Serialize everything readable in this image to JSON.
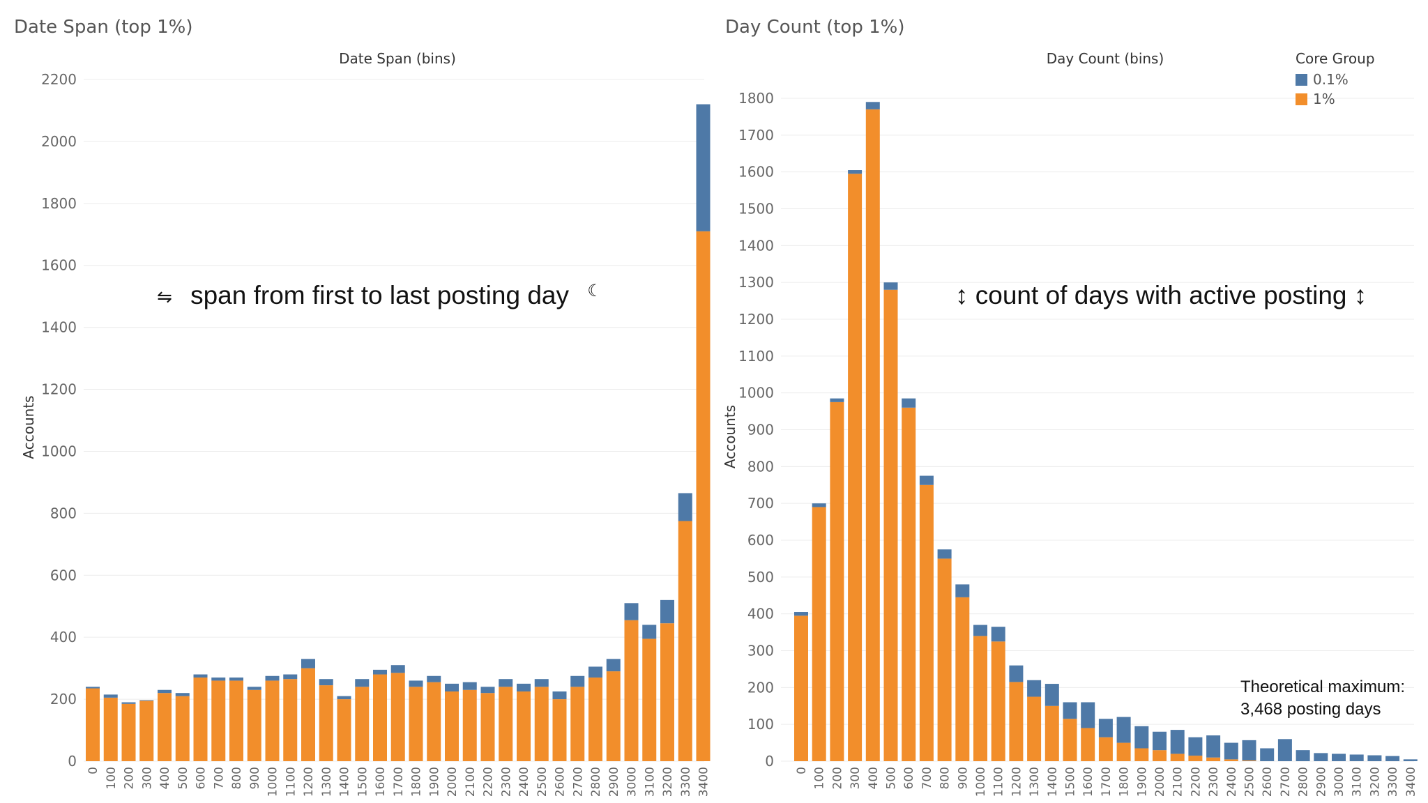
{
  "panels": {
    "left": {
      "panel_title": "Date Span (top 1%)",
      "annotation": "span from first to last posting day",
      "annotation_icon_left": "left-right-arrow-icon",
      "annotation_icon_right": "left-right-arrow-icon"
    },
    "right": {
      "panel_title": "Day Count (top 1%)",
      "annotation": "count of days with active posting",
      "annotation_icon_left": "up-down-arrow-icon",
      "annotation_icon_right": "up-down-arrow-icon",
      "note_line1": "Theoretical maximum:",
      "note_line2": "3,468 posting days"
    }
  },
  "legend": {
    "title": "Core Group",
    "items": [
      {
        "label": "0.1%",
        "color": "#4e79a7"
      },
      {
        "label": "1%",
        "color": "#f28e2b"
      }
    ]
  },
  "colors": {
    "series_0_1": "#4e79a7",
    "series_1": "#f28e2b",
    "grid": "#ececec",
    "axis_text": "#666666"
  },
  "chart_data": [
    {
      "type": "bar",
      "stacked": true,
      "title": "Date Span (bins)",
      "xlabel": "",
      "ylabel": "Accounts",
      "ylim": [
        0,
        2200
      ],
      "yticks": [
        0,
        200,
        400,
        600,
        800,
        1000,
        1200,
        1400,
        1600,
        1800,
        2000,
        2200
      ],
      "categories": [
        "0",
        "100",
        "200",
        "300",
        "400",
        "500",
        "600",
        "700",
        "800",
        "900",
        "1000",
        "1100",
        "1200",
        "1300",
        "1400",
        "1500",
        "1600",
        "1700",
        "1800",
        "1900",
        "2000",
        "2100",
        "2200",
        "2300",
        "2400",
        "2500",
        "2600",
        "2700",
        "2800",
        "2900",
        "3000",
        "3100",
        "3200",
        "3300",
        "3400"
      ],
      "series": [
        {
          "name": "1%",
          "values": [
            235,
            205,
            185,
            195,
            220,
            210,
            270,
            260,
            260,
            230,
            260,
            265,
            300,
            245,
            200,
            240,
            280,
            285,
            240,
            255,
            225,
            230,
            220,
            240,
            225,
            240,
            200,
            240,
            270,
            290,
            455,
            395,
            445,
            775,
            1710
          ]
        },
        {
          "name": "0.1%",
          "values": [
            5,
            10,
            5,
            2,
            10,
            10,
            10,
            10,
            10,
            10,
            15,
            15,
            30,
            20,
            10,
            25,
            15,
            25,
            20,
            20,
            25,
            25,
            20,
            25,
            25,
            25,
            25,
            35,
            35,
            40,
            55,
            45,
            75,
            90,
            410
          ]
        }
      ]
    },
    {
      "type": "bar",
      "stacked": true,
      "title": "Day Count (bins)",
      "xlabel": "",
      "ylabel": "Accounts",
      "ylim": [
        0,
        1800
      ],
      "yticks": [
        0,
        100,
        200,
        300,
        400,
        500,
        600,
        700,
        800,
        900,
        1000,
        1100,
        1200,
        1300,
        1400,
        1500,
        1600,
        1700,
        1800
      ],
      "categories": [
        "0",
        "100",
        "200",
        "300",
        "400",
        "500",
        "600",
        "700",
        "800",
        "900",
        "1000",
        "1100",
        "1200",
        "1300",
        "1400",
        "1500",
        "1600",
        "1700",
        "1800",
        "1900",
        "2000",
        "2100",
        "2200",
        "2300",
        "2400",
        "2500",
        "2600",
        "2700",
        "2800",
        "2900",
        "3000",
        "3100",
        "3200",
        "3300",
        "3400"
      ],
      "series": [
        {
          "name": "1%",
          "values": [
            395,
            690,
            975,
            1595,
            1770,
            1280,
            960,
            750,
            550,
            445,
            340,
            325,
            215,
            175,
            150,
            115,
            90,
            65,
            50,
            35,
            30,
            20,
            15,
            10,
            5,
            2,
            0,
            0,
            0,
            0,
            0,
            0,
            0,
            0,
            0
          ]
        },
        {
          "name": "0.1%",
          "values": [
            10,
            10,
            10,
            10,
            20,
            20,
            25,
            25,
            25,
            35,
            30,
            40,
            45,
            45,
            60,
            45,
            70,
            50,
            70,
            60,
            50,
            65,
            50,
            60,
            45,
            55,
            35,
            60,
            30,
            22,
            20,
            18,
            16,
            14,
            5
          ]
        }
      ]
    }
  ]
}
